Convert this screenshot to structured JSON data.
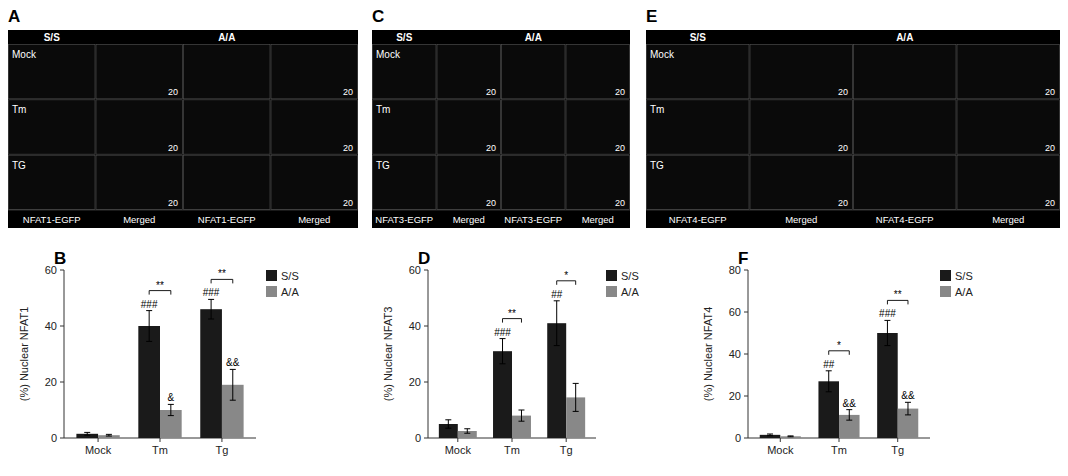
{
  "chart_data": [
    {
      "type": "image_grid",
      "title": "A",
      "column_labels": [
        "S/S",
        null,
        "A/A",
        null
      ],
      "row_labels": [
        "Mock",
        "Tm",
        "TG"
      ],
      "bottom_labels": [
        "NFAT1-EGFP",
        "Merged",
        "NFAT1-EGFP",
        "Merged"
      ],
      "scale_label": "20"
    },
    {
      "type": "bar",
      "title": "B",
      "categories": [
        "Mock",
        "Tm",
        "Tg"
      ],
      "series": [
        {
          "name": "S/S",
          "color": "#1a1a1a",
          "values": [
            1.5,
            40.0,
            46.0
          ],
          "errors": [
            0.5,
            5.5,
            3.5
          ]
        },
        {
          "name": "A/A",
          "color": "#888888",
          "values": [
            1.0,
            10.0,
            19.0
          ],
          "errors": [
            0.3,
            2.0,
            5.5
          ]
        }
      ],
      "ylabel": "(%) Nuclear NFAT1",
      "ylim": [
        0,
        60
      ],
      "yticks": [
        0,
        20,
        40,
        60
      ],
      "legend": "upper right",
      "annotations": [
        {
          "category": "Tm",
          "series": "S/S",
          "text": "###"
        },
        {
          "category": "Tg",
          "series": "S/S",
          "text": "###"
        },
        {
          "category": "Tm",
          "series": "A/A",
          "text": "&"
        },
        {
          "category": "Tg",
          "series": "A/A",
          "text": "&&"
        }
      ],
      "brackets": [
        {
          "category": "Tm",
          "text": "**"
        },
        {
          "category": "Tg",
          "text": "**"
        }
      ]
    },
    {
      "type": "image_grid",
      "title": "C",
      "column_labels": [
        "S/S",
        null,
        "A/A",
        null
      ],
      "row_labels": [
        "Mock",
        "Tm",
        "TG"
      ],
      "bottom_labels": [
        "NFAT3-EGFP",
        "Merged",
        "NFAT3-EGFP",
        "Merged"
      ],
      "scale_label": "20"
    },
    {
      "type": "bar",
      "title": "D",
      "categories": [
        "Mock",
        "Tm",
        "Tg"
      ],
      "series": [
        {
          "name": "S/S",
          "color": "#1a1a1a",
          "values": [
            5.0,
            31.0,
            41.0
          ],
          "errors": [
            1.5,
            4.5,
            8.0
          ]
        },
        {
          "name": "A/A",
          "color": "#888888",
          "values": [
            2.5,
            8.0,
            14.5
          ],
          "errors": [
            0.8,
            2.0,
            5.0
          ]
        }
      ],
      "ylabel": "(%) Nuclear NFAT3",
      "ylim": [
        0,
        60
      ],
      "yticks": [
        0,
        20,
        40,
        60
      ],
      "legend": "upper right",
      "annotations": [
        {
          "category": "Tm",
          "series": "S/S",
          "text": "###"
        },
        {
          "category": "Tg",
          "series": "S/S",
          "text": "##"
        }
      ],
      "brackets": [
        {
          "category": "Tm",
          "text": "**"
        },
        {
          "category": "Tg",
          "text": "*"
        }
      ]
    },
    {
      "type": "image_grid",
      "title": "E",
      "column_labels": [
        "S/S",
        null,
        "A/A",
        null
      ],
      "row_labels": [
        "Mock",
        "Tm",
        "TG"
      ],
      "bottom_labels": [
        "NFAT4-EGFP",
        "Merged",
        "NFAT4-EGFP",
        "Merged"
      ],
      "scale_label": "20"
    },
    {
      "type": "bar",
      "title": "F",
      "categories": [
        "Mock",
        "Tm",
        "Tg"
      ],
      "series": [
        {
          "name": "S/S",
          "color": "#1a1a1a",
          "values": [
            1.5,
            27.0,
            50.0
          ],
          "errors": [
            0.4,
            5.0,
            6.0
          ]
        },
        {
          "name": "A/A",
          "color": "#888888",
          "values": [
            0.8,
            11.0,
            14.0
          ],
          "errors": [
            0.2,
            2.5,
            3.0
          ]
        }
      ],
      "ylabel": "(%) Nuclear NFAT4",
      "ylim": [
        0,
        80
      ],
      "yticks": [
        0,
        20,
        40,
        60,
        80
      ],
      "legend": "upper right",
      "annotations": [
        {
          "category": "Tm",
          "series": "S/S",
          "text": "##"
        },
        {
          "category": "Tg",
          "series": "S/S",
          "text": "###"
        },
        {
          "category": "Tm",
          "series": "A/A",
          "text": "&&"
        },
        {
          "category": "Tg",
          "series": "A/A",
          "text": "&&"
        }
      ],
      "brackets": [
        {
          "category": "Tm",
          "text": "*"
        },
        {
          "category": "Tg",
          "text": "**"
        }
      ]
    }
  ]
}
